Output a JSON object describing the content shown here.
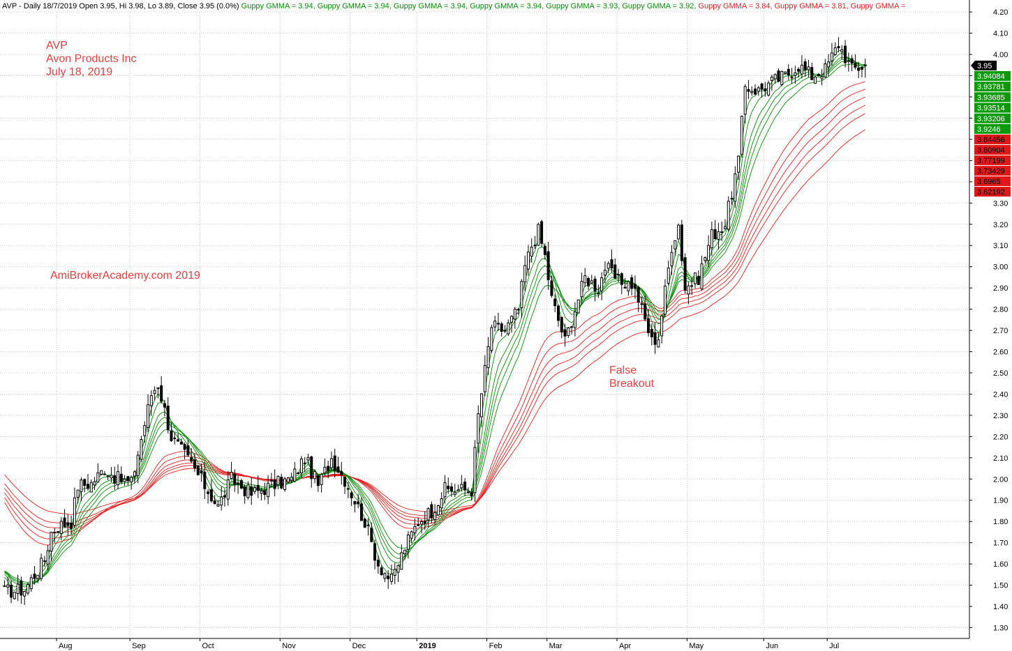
{
  "header": {
    "prefix": "AVP - Daily 18/7/2019 Open 3.95, Hi 3.98, Lo 3.89, Close 3.95 (0.0%)",
    "gmma_label": "Guppy GMMA",
    "gmma_values": [
      "3.94",
      "3.94",
      "3.94",
      "3.94",
      "3.93",
      "3.92",
      "3.84",
      "3.81",
      ""
    ],
    "gmma_colors": [
      "#0a8a0a",
      "#0a8a0a",
      "#0a8a0a",
      "#0a8a0a",
      "#0a8a0a",
      "#0a8a0a",
      "#e02020",
      "#e02020",
      "#e02020"
    ]
  },
  "annotations": {
    "ticker": "AVP",
    "company": "Avon Products Inc",
    "date": "July 18, 2019",
    "watermark": "AmiBrokerAcademy.com  2019",
    "false_breakout_1": "False",
    "false_breakout_2": "Breakout"
  },
  "colors": {
    "short_ma": "#0a8a0a",
    "long_ma": "#e02020",
    "text_red": "#e04040",
    "grid": "#c8c8c8",
    "candle": "#000000"
  },
  "chart_data": {
    "type": "candlestick",
    "symbol": "AVP",
    "ylim": [
      1.25,
      4.24
    ],
    "yticks": [
      "1.30",
      "1.40",
      "1.50",
      "1.60",
      "1.70",
      "1.80",
      "1.90",
      "2.00",
      "2.10",
      "2.20",
      "2.30",
      "2.40",
      "2.50",
      "2.60",
      "2.70",
      "2.80",
      "2.90",
      "3.00",
      "3.10",
      "3.20",
      "3.30",
      "3.40",
      "3.50",
      "3.60",
      "3.70",
      "3.80",
      "3.90",
      "4.00",
      "4.10",
      "4.20"
    ],
    "month_labels": [
      "Aug",
      "Sep",
      "Oct",
      "Nov",
      "Dec",
      "2019",
      "Feb",
      "Mar",
      "Apr",
      "May",
      "Jun",
      "Jul"
    ],
    "month_start_index": [
      16,
      38,
      59,
      83,
      104,
      124,
      145,
      163,
      184,
      205,
      228,
      247
    ],
    "close_anchors": [
      [
        0,
        1.47
      ],
      [
        6,
        1.48
      ],
      [
        12,
        1.62
      ],
      [
        14,
        1.75
      ],
      [
        16,
        1.78
      ],
      [
        20,
        1.8
      ],
      [
        22,
        1.97
      ],
      [
        26,
        1.98
      ],
      [
        30,
        2.05
      ],
      [
        34,
        2.0
      ],
      [
        38,
        1.98
      ],
      [
        44,
        2.4
      ],
      [
        46,
        2.45
      ],
      [
        50,
        2.2
      ],
      [
        56,
        2.07
      ],
      [
        60,
        1.97
      ],
      [
        64,
        1.87
      ],
      [
        68,
        2.0
      ],
      [
        74,
        1.93
      ],
      [
        80,
        1.97
      ],
      [
        86,
        2.0
      ],
      [
        90,
        2.1
      ],
      [
        94,
        1.97
      ],
      [
        98,
        2.1
      ],
      [
        102,
        2.0
      ],
      [
        108,
        1.8
      ],
      [
        112,
        1.6
      ],
      [
        116,
        1.52
      ],
      [
        120,
        1.68
      ],
      [
        124,
        1.8
      ],
      [
        128,
        1.85
      ],
      [
        132,
        1.95
      ],
      [
        136,
        1.95
      ],
      [
        140,
        1.95
      ],
      [
        142,
        2.3
      ],
      [
        146,
        2.72
      ],
      [
        150,
        2.7
      ],
      [
        154,
        2.8
      ],
      [
        156,
        3.0
      ],
      [
        158,
        3.1
      ],
      [
        160,
        3.17
      ],
      [
        162,
        3.05
      ],
      [
        164,
        2.85
      ],
      [
        168,
        2.65
      ],
      [
        172,
        2.85
      ],
      [
        174,
        2.95
      ],
      [
        178,
        2.9
      ],
      [
        180,
        3.0
      ],
      [
        184,
        2.93
      ],
      [
        188,
        2.92
      ],
      [
        190,
        2.85
      ],
      [
        194,
        2.65
      ],
      [
        196,
        2.67
      ],
      [
        200,
        3.1
      ],
      [
        202,
        3.2
      ],
      [
        204,
        2.9
      ],
      [
        208,
        2.95
      ],
      [
        212,
        3.15
      ],
      [
        216,
        3.2
      ],
      [
        220,
        3.5
      ],
      [
        222,
        3.85
      ],
      [
        226,
        3.83
      ],
      [
        230,
        3.87
      ],
      [
        234,
        3.9
      ],
      [
        238,
        3.95
      ],
      [
        242,
        3.9
      ],
      [
        246,
        3.93
      ],
      [
        250,
        4.05
      ],
      [
        254,
        3.93
      ],
      [
        258,
        3.95
      ]
    ],
    "last_bar": {
      "date": "18/7/2019",
      "open": 3.95,
      "high": 3.98,
      "low": 3.89,
      "close": 3.95,
      "change_pct": "0.0%"
    },
    "series": [
      {
        "name": "Guppy GMMA",
        "period": 3,
        "group": "short"
      },
      {
        "name": "Guppy GMMA",
        "period": 5,
        "group": "short"
      },
      {
        "name": "Guppy GMMA",
        "period": 8,
        "group": "short"
      },
      {
        "name": "Guppy GMMA",
        "period": 10,
        "group": "short"
      },
      {
        "name": "Guppy GMMA",
        "period": 12,
        "group": "short"
      },
      {
        "name": "Guppy GMMA",
        "period": 15,
        "group": "short"
      },
      {
        "name": "Guppy GMMA",
        "period": 30,
        "group": "long"
      },
      {
        "name": "Guppy GMMA",
        "period": 35,
        "group": "long"
      },
      {
        "name": "Guppy GMMA",
        "period": 40,
        "group": "long"
      },
      {
        "name": "Guppy GMMA",
        "period": 45,
        "group": "long"
      },
      {
        "name": "Guppy GMMA",
        "period": 50,
        "group": "long"
      },
      {
        "name": "Guppy GMMA",
        "period": 60,
        "group": "long"
      }
    ],
    "last_values": {
      "price": "3.95",
      "short": [
        "3.94084",
        "3.93781",
        "3.93685",
        "3.93514",
        "3.93206",
        "3.9246"
      ],
      "long": [
        "3.84456",
        "3.80904",
        "3.77199",
        "3.73429",
        "3.6965",
        "3.62192"
      ]
    },
    "grid": true
  }
}
